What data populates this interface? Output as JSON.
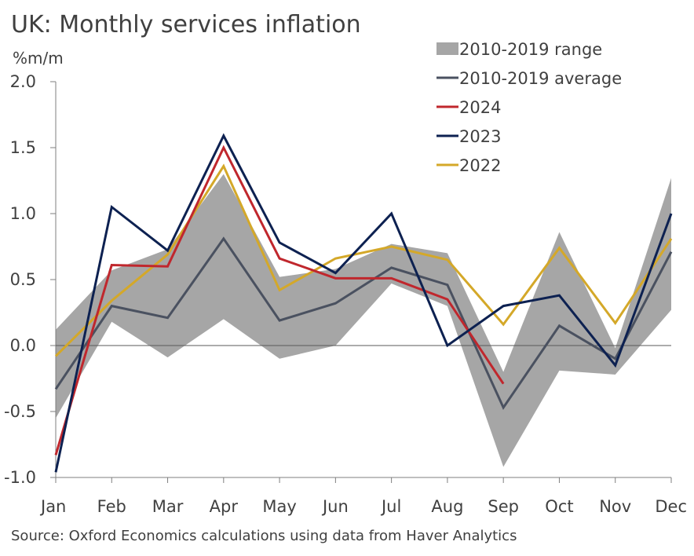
{
  "chart_data": {
    "type": "line",
    "title": "UK: Monthly services inflation",
    "ylabel": "%m/m",
    "xlabel": "",
    "categories": [
      "Jan",
      "Feb",
      "Mar",
      "Apr",
      "May",
      "Jun",
      "Jul",
      "Aug",
      "Sep",
      "Oct",
      "Nov",
      "Dec"
    ],
    "ylim": [
      -1.0,
      2.0
    ],
    "yticks": [
      -1.0,
      -0.5,
      0.0,
      0.5,
      1.0,
      1.5,
      2.0
    ],
    "ytick_labels": [
      "-1.0",
      "-0.5",
      "0.0",
      "0.5",
      "1.0",
      "1.5",
      "2.0"
    ],
    "range": {
      "name": "2010-2019 range",
      "color": "#a6a6a6",
      "low": [
        -0.55,
        0.18,
        -0.09,
        0.2,
        -0.1,
        0.0,
        0.47,
        0.3,
        -0.92,
        -0.19,
        -0.22,
        0.27
      ],
      "high": [
        0.12,
        0.57,
        0.73,
        1.3,
        0.52,
        0.58,
        0.77,
        0.7,
        -0.2,
        0.86,
        -0.02,
        1.27
      ]
    },
    "series": [
      {
        "name": "2010-2019 average",
        "color": "#4a5160",
        "values": [
          -0.33,
          0.3,
          0.21,
          0.81,
          0.19,
          0.32,
          0.59,
          0.46,
          -0.47,
          0.15,
          -0.1,
          0.71
        ]
      },
      {
        "name": "2024",
        "color": "#c0272d",
        "values": [
          -0.83,
          0.61,
          0.6,
          1.5,
          0.66,
          0.51,
          0.51,
          0.35,
          -0.29,
          null,
          null,
          null
        ]
      },
      {
        "name": "2023",
        "color": "#0d2151",
        "values": [
          -0.96,
          1.05,
          0.72,
          1.59,
          0.78,
          0.55,
          1.0,
          0.0,
          0.3,
          0.38,
          -0.15,
          1.0
        ]
      },
      {
        "name": "2022",
        "color": "#d4a829",
        "values": [
          -0.08,
          0.34,
          0.69,
          1.36,
          0.42,
          0.66,
          0.75,
          0.65,
          0.16,
          0.74,
          0.17,
          0.81
        ]
      }
    ],
    "legend": [
      "2010-2019 range",
      "2010-2019 average",
      "2024",
      "2023",
      "2022"
    ],
    "legend_position": "top-right",
    "grid": false
  },
  "source": "Source: Oxford Economics calculations using data from Haver Analytics"
}
